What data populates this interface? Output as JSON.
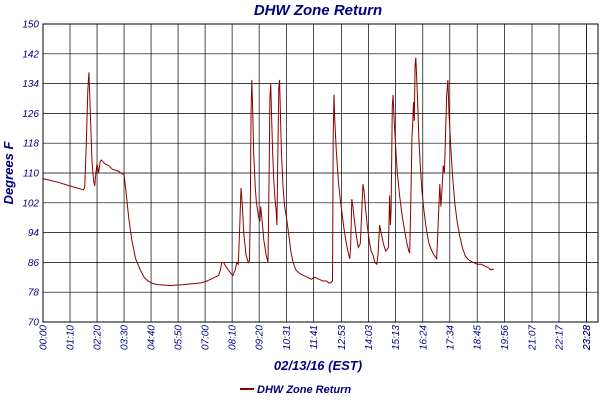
{
  "chart_data": {
    "type": "line",
    "title": "DHW Zone Return",
    "xlabel": "02/13/16 (EST)",
    "ylabel": "Degrees F",
    "ylim": [
      70,
      150
    ],
    "xlim": [
      0,
      1438
    ],
    "grid": true,
    "legend_position": "bottom-center",
    "yticks": [
      70,
      78,
      86,
      94,
      102,
      110,
      118,
      126,
      134,
      142,
      150
    ],
    "xticks": [
      {
        "t": 0,
        "label": "00:00"
      },
      {
        "t": 70,
        "label": "01:10"
      },
      {
        "t": 140,
        "label": "02:20"
      },
      {
        "t": 210,
        "label": "03:30"
      },
      {
        "t": 280,
        "label": "04:40"
      },
      {
        "t": 350,
        "label": "05:50"
      },
      {
        "t": 420,
        "label": "07:00"
      },
      {
        "t": 490,
        "label": "08:10"
      },
      {
        "t": 560,
        "label": "09:20"
      },
      {
        "t": 631,
        "label": "10:31"
      },
      {
        "t": 701,
        "label": "11:41"
      },
      {
        "t": 773,
        "label": "12:53"
      },
      {
        "t": 843,
        "label": "14:03"
      },
      {
        "t": 913,
        "label": "15:13"
      },
      {
        "t": 984,
        "label": "16:24"
      },
      {
        "t": 1054,
        "label": "17:34"
      },
      {
        "t": 1125,
        "label": "18:45"
      },
      {
        "t": 1196,
        "label": "19:56"
      },
      {
        "t": 1267,
        "label": "21:07"
      },
      {
        "t": 1337,
        "label": "22:17"
      },
      {
        "t": 1408,
        "label": "23:28"
      },
      {
        "t": 1408,
        "label": "23:28"
      }
    ],
    "color": "#8b0000",
    "series": [
      {
        "name": "DHW Zone Return",
        "points": [
          [
            0,
            108.5
          ],
          [
            20,
            108
          ],
          [
            40,
            107.5
          ],
          [
            70,
            106.5
          ],
          [
            105,
            105.5
          ],
          [
            108,
            106
          ],
          [
            112,
            117
          ],
          [
            116,
            132
          ],
          [
            119,
            137
          ],
          [
            122,
            128
          ],
          [
            127,
            113
          ],
          [
            131,
            108
          ],
          [
            134,
            106.5
          ],
          [
            137,
            110
          ],
          [
            140,
            112.5
          ],
          [
            144,
            110
          ],
          [
            148,
            113
          ],
          [
            151,
            113.5
          ],
          [
            160,
            112.5
          ],
          [
            170,
            112
          ],
          [
            180,
            111
          ],
          [
            195,
            110.5
          ],
          [
            210,
            109.5
          ],
          [
            215,
            105
          ],
          [
            222,
            98
          ],
          [
            230,
            92
          ],
          [
            240,
            87
          ],
          [
            252,
            84
          ],
          [
            262,
            82
          ],
          [
            272,
            81
          ],
          [
            285,
            80.3
          ],
          [
            300,
            80
          ],
          [
            330,
            79.8
          ],
          [
            360,
            80
          ],
          [
            390,
            80.3
          ],
          [
            410,
            80.5
          ],
          [
            425,
            81
          ],
          [
            435,
            81.5
          ],
          [
            445,
            82
          ],
          [
            455,
            82.5
          ],
          [
            460,
            84
          ],
          [
            463,
            86
          ],
          [
            468,
            86
          ],
          [
            473,
            85
          ],
          [
            480,
            84
          ],
          [
            487,
            83
          ],
          [
            492,
            82.5
          ],
          [
            498,
            84
          ],
          [
            502,
            86
          ],
          [
            506,
            85.5
          ],
          [
            510,
            96
          ],
          [
            513,
            106
          ],
          [
            516,
            102
          ],
          [
            520,
            94
          ],
          [
            526,
            88
          ],
          [
            532,
            86
          ],
          [
            535,
            86.5
          ],
          [
            537,
            100
          ],
          [
            539,
            125
          ],
          [
            541,
            135
          ],
          [
            543,
            128
          ],
          [
            546,
            115
          ],
          [
            550,
            106
          ],
          [
            553,
            102
          ],
          [
            556,
            100
          ],
          [
            559,
            98
          ],
          [
            562,
            97
          ],
          [
            564,
            101
          ],
          [
            568,
            97
          ],
          [
            572,
            92
          ],
          [
            578,
            88
          ],
          [
            583,
            86
          ],
          [
            586,
            112
          ],
          [
            588,
            130
          ],
          [
            590,
            134
          ],
          [
            592,
            126
          ],
          [
            595,
            116
          ],
          [
            598,
            108
          ],
          [
            601,
            103
          ],
          [
            604,
            100
          ],
          [
            606,
            96
          ],
          [
            609,
            118
          ],
          [
            611,
            133
          ],
          [
            613,
            135
          ],
          [
            615,
            126
          ],
          [
            618,
            115
          ],
          [
            622,
            106
          ],
          [
            626,
            101
          ],
          [
            631,
            98
          ],
          [
            636,
            94
          ],
          [
            642,
            89
          ],
          [
            648,
            86
          ],
          [
            655,
            84
          ],
          [
            665,
            83
          ],
          [
            675,
            82.5
          ],
          [
            685,
            82
          ],
          [
            695,
            81.5
          ],
          [
            705,
            82
          ],
          [
            715,
            81.5
          ],
          [
            725,
            81
          ],
          [
            735,
            81
          ],
          [
            740,
            80.5
          ],
          [
            745,
            80.5
          ],
          [
            750,
            81
          ],
          [
            752,
            120
          ],
          [
            754,
            131
          ],
          [
            756,
            124
          ],
          [
            760,
            116
          ],
          [
            765,
            108
          ],
          [
            770,
            103
          ],
          [
            775,
            99
          ],
          [
            780,
            95
          ],
          [
            786,
            91
          ],
          [
            792,
            88
          ],
          [
            795,
            87
          ],
          [
            797,
            90
          ],
          [
            800,
            103
          ],
          [
            803,
            101
          ],
          [
            807,
            97
          ],
          [
            812,
            93
          ],
          [
            817,
            90
          ],
          [
            822,
            91
          ],
          [
            826,
            100
          ],
          [
            829,
            107
          ],
          [
            832,
            105
          ],
          [
            836,
            100
          ],
          [
            840,
            96
          ],
          [
            845,
            92
          ],
          [
            850,
            89
          ],
          [
            855,
            88
          ],
          [
            860,
            86
          ],
          [
            865,
            85.5
          ],
          [
            868,
            88
          ],
          [
            872,
            96
          ],
          [
            876,
            94
          ],
          [
            882,
            91
          ],
          [
            888,
            89
          ],
          [
            895,
            90
          ],
          [
            898,
            104
          ],
          [
            900,
            96
          ],
          [
            902,
            100
          ],
          [
            905,
            128
          ],
          [
            907,
            131
          ],
          [
            909,
            126
          ],
          [
            913,
            118
          ],
          [
            918,
            110
          ],
          [
            924,
            104
          ],
          [
            930,
            99
          ],
          [
            936,
            95
          ],
          [
            943,
            91
          ],
          [
            948,
            89
          ],
          [
            950,
            88.5
          ],
          [
            953,
            102
          ],
          [
            956,
            120
          ],
          [
            958,
            123
          ],
          [
            960,
            129
          ],
          [
            962,
            124
          ],
          [
            964,
            139
          ],
          [
            966,
            141
          ],
          [
            968,
            136
          ],
          [
            971,
            128
          ],
          [
            974,
            119
          ],
          [
            978,
            111
          ],
          [
            982,
            105
          ],
          [
            987,
            100
          ],
          [
            993,
            95
          ],
          [
            1000,
            91
          ],
          [
            1010,
            88.5
          ],
          [
            1020,
            87
          ],
          [
            1025,
            99
          ],
          [
            1028,
            107
          ],
          [
            1031,
            101
          ],
          [
            1034,
            106
          ],
          [
            1037,
            112
          ],
          [
            1040,
            110
          ],
          [
            1043,
            120
          ],
          [
            1046,
            131
          ],
          [
            1049,
            135
          ],
          [
            1052,
            126
          ],
          [
            1057,
            116
          ],
          [
            1062,
            108
          ],
          [
            1067,
            102
          ],
          [
            1073,
            97
          ],
          [
            1080,
            93
          ],
          [
            1088,
            89.5
          ],
          [
            1095,
            87.5
          ],
          [
            1105,
            86.5
          ],
          [
            1115,
            86
          ],
          [
            1125,
            85.5
          ],
          [
            1135,
            85.5
          ],
          [
            1145,
            85
          ],
          [
            1155,
            84.5
          ],
          [
            1160,
            84
          ],
          [
            1168,
            84.2
          ]
        ]
      }
    ]
  }
}
